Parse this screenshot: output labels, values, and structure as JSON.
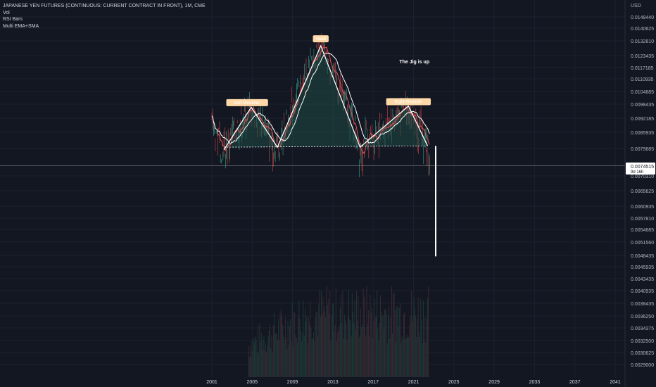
{
  "header": {
    "title": "JAPANESE YEN FUTURES (CONTINUOUS: CURRENT CONTRACT IN FRONT), 1M, CME",
    "indicators": [
      "Vol",
      "RSI Bars",
      "Multi EMA+SMA"
    ]
  },
  "colors": {
    "background": "#131722",
    "price_line": "#ffffff",
    "ema_red": "#e05050",
    "ema_white": "#ffffff",
    "fill": "#1f4a45",
    "label_bg": "#ffd8a8",
    "current_price_bg": "#ffffff"
  },
  "chart_data": {
    "type": "line",
    "title": "JAPANESE YEN FUTURES (CONTINUOUS: CURRENT CONTRACT IN FRONT), 1M, CME",
    "currency_label": "USD",
    "y_ticks": [
      "0.0148440",
      "0.0140625",
      "0.0132810",
      "0.0123435",
      "0.0117185",
      "0.0110935",
      "0.0104685",
      "0.0098435",
      "0.0092185",
      "0.0085935",
      "0.0079685",
      "0.0070310",
      "0.0065625",
      "0.0060935",
      "0.0057810",
      "0.0054685",
      "0.0051560",
      "0.0048435",
      "0.0045935",
      "0.0043435",
      "0.0040935",
      "0.0038435",
      "0.0036250",
      "0.0034375",
      "0.0032500",
      "0.0030625",
      "0.0029000"
    ],
    "x_ticks": [
      "2001",
      "2005",
      "2009",
      "2013",
      "2017",
      "2021",
      "2025",
      "2029",
      "2033",
      "2037",
      "2041"
    ],
    "current_price": "0.0074515",
    "countdown": "9d 16h",
    "pattern_points": [
      {
        "x": 2002.2,
        "y": 0.008
      },
      {
        "x": 2004.9,
        "y": 0.0098
      },
      {
        "x": 2007.5,
        "y": 0.0081
      },
      {
        "x": 2011.8,
        "y": 0.0131
      },
      {
        "x": 2015.7,
        "y": 0.0081
      },
      {
        "x": 2020.5,
        "y": 0.00985
      },
      {
        "x": 2022.4,
        "y": 0.00815
      }
    ],
    "neckline": {
      "x": [
        2002.2,
        2022.4
      ],
      "y": [
        0.0081,
        0.00815
      ]
    },
    "projection": {
      "x": 2023.2,
      "y_from": 0.00815,
      "y_to": 0.00487
    },
    "annotations": [
      {
        "text": "Left Shoulder",
        "x": 2004.5,
        "y": 0.00995
      },
      {
        "text": "Head",
        "x": 2011.8,
        "y": 0.01345
      },
      {
        "text": "Right Shoulder",
        "x": 2020.5,
        "y": 0.01
      },
      {
        "text": "The Jig is up",
        "x": 2020.5,
        "y": 0.0122
      }
    ],
    "grid": true
  }
}
